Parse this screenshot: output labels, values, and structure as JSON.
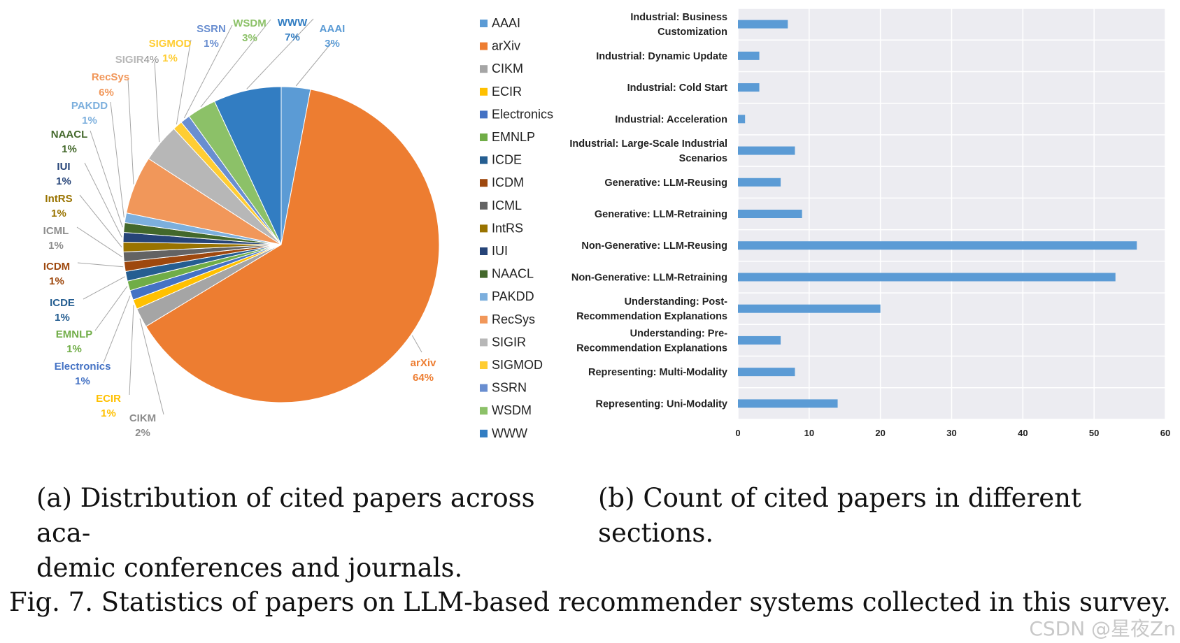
{
  "chart_data": [
    {
      "type": "pie",
      "slices": [
        {
          "label": "AAAI",
          "value": 3,
          "pct_label": "3%",
          "color": "#5b9bd5"
        },
        {
          "label": "arXiv",
          "value": 64,
          "pct_label": "64%",
          "color": "#ed7d31"
        },
        {
          "label": "CIKM",
          "value": 2,
          "pct_label": "2%",
          "color": "#a5a5a5"
        },
        {
          "label": "ECIR",
          "value": 1,
          "pct_label": "1%",
          "color": "#ffc000"
        },
        {
          "label": "Electronics",
          "value": 1,
          "pct_label": "1%",
          "color": "#4472c4"
        },
        {
          "label": "EMNLP",
          "value": 1,
          "pct_label": "1%",
          "color": "#70ad47"
        },
        {
          "label": "ICDE",
          "value": 1,
          "pct_label": "1%",
          "color": "#255e91"
        },
        {
          "label": "ICDM",
          "value": 1,
          "pct_label": "1%",
          "color": "#9e480e"
        },
        {
          "label": "ICML",
          "value": 1,
          "pct_label": "1%",
          "color": "#636363"
        },
        {
          "label": "IntRS",
          "value": 1,
          "pct_label": "1%",
          "color": "#997300"
        },
        {
          "label": "IUI",
          "value": 1,
          "pct_label": "1%",
          "color": "#264478"
        },
        {
          "label": "NAACL",
          "value": 1,
          "pct_label": "1%",
          "color": "#43682b"
        },
        {
          "label": "PAKDD",
          "value": 1,
          "pct_label": "1%",
          "color": "#7cafdd"
        },
        {
          "label": "RecSys",
          "value": 6,
          "pct_label": "6%",
          "color": "#f1975a"
        },
        {
          "label": "SIGIR",
          "value": 4,
          "pct_label": "4%",
          "color": "#b7b7b7"
        },
        {
          "label": "SIGMOD",
          "value": 1,
          "pct_label": "1%",
          "color": "#ffcd33"
        },
        {
          "label": "SSRN",
          "value": 1,
          "pct_label": "1%",
          "color": "#698ed0"
        },
        {
          "label": "WSDM",
          "value": 3,
          "pct_label": "3%",
          "color": "#8cc168"
        },
        {
          "label": "WWW",
          "value": 7,
          "pct_label": "7%",
          "color": "#327dc2"
        }
      ],
      "legend_position": "right"
    },
    {
      "type": "bar",
      "orientation": "horizontal",
      "categories": [
        "Industrial: Business Customization",
        "Industrial: Dynamic Update",
        "Industrial: Cold Start",
        "Industrial: Acceleration",
        "Industrial: Large-Scale Industrial Scenarios",
        "Generative: LLM-Reusing",
        "Generative: LLM-Retraining",
        "Non-Generative: LLM-Reusing",
        "Non-Generative: LLM-Retraining",
        "Understanding: Post-Recommendation Explanations",
        "Understanding: Pre-Recommendation Explanations",
        "Representing: Multi-Modality",
        "Representing: Uni-Modality"
      ],
      "category_lines": [
        [
          "Industrial: Business",
          "Customization"
        ],
        [
          "Industrial: Dynamic Update"
        ],
        [
          "Industrial: Cold Start"
        ],
        [
          "Industrial: Acceleration"
        ],
        [
          "Industrial: Large-Scale Industrial",
          "Scenarios"
        ],
        [
          "Generative: LLM-Reusing"
        ],
        [
          "Generative: LLM-Retraining"
        ],
        [
          "Non-Generative: LLM-Reusing"
        ],
        [
          "Non-Generative: LLM-Retraining"
        ],
        [
          "Understanding: Post-",
          "Recommendation Explanations"
        ],
        [
          "Understanding: Pre-",
          "Recommendation Explanations"
        ],
        [
          "Representing: Multi-Modality"
        ],
        [
          "Representing: Uni-Modality"
        ]
      ],
      "values": [
        7,
        3,
        3,
        1,
        8,
        6,
        9,
        56,
        53,
        20,
        6,
        8,
        14
      ],
      "xlim": [
        0,
        60
      ],
      "xticks": [
        0,
        10,
        20,
        30,
        40,
        50,
        60
      ],
      "grid": true,
      "bar_color": "#5b9bd5",
      "plot_background": "#ececf1"
    }
  ],
  "captions": {
    "a_line1": "(a) Distribution of cited papers across aca-",
    "a_line2": "demic conferences and journals.",
    "b": "(b) Count of cited papers in different sections.",
    "figure": "Fig. 7.  Statistics of papers on LLM-based recommender systems collected in this survey."
  },
  "watermark": "CSDN @星夜Zn"
}
